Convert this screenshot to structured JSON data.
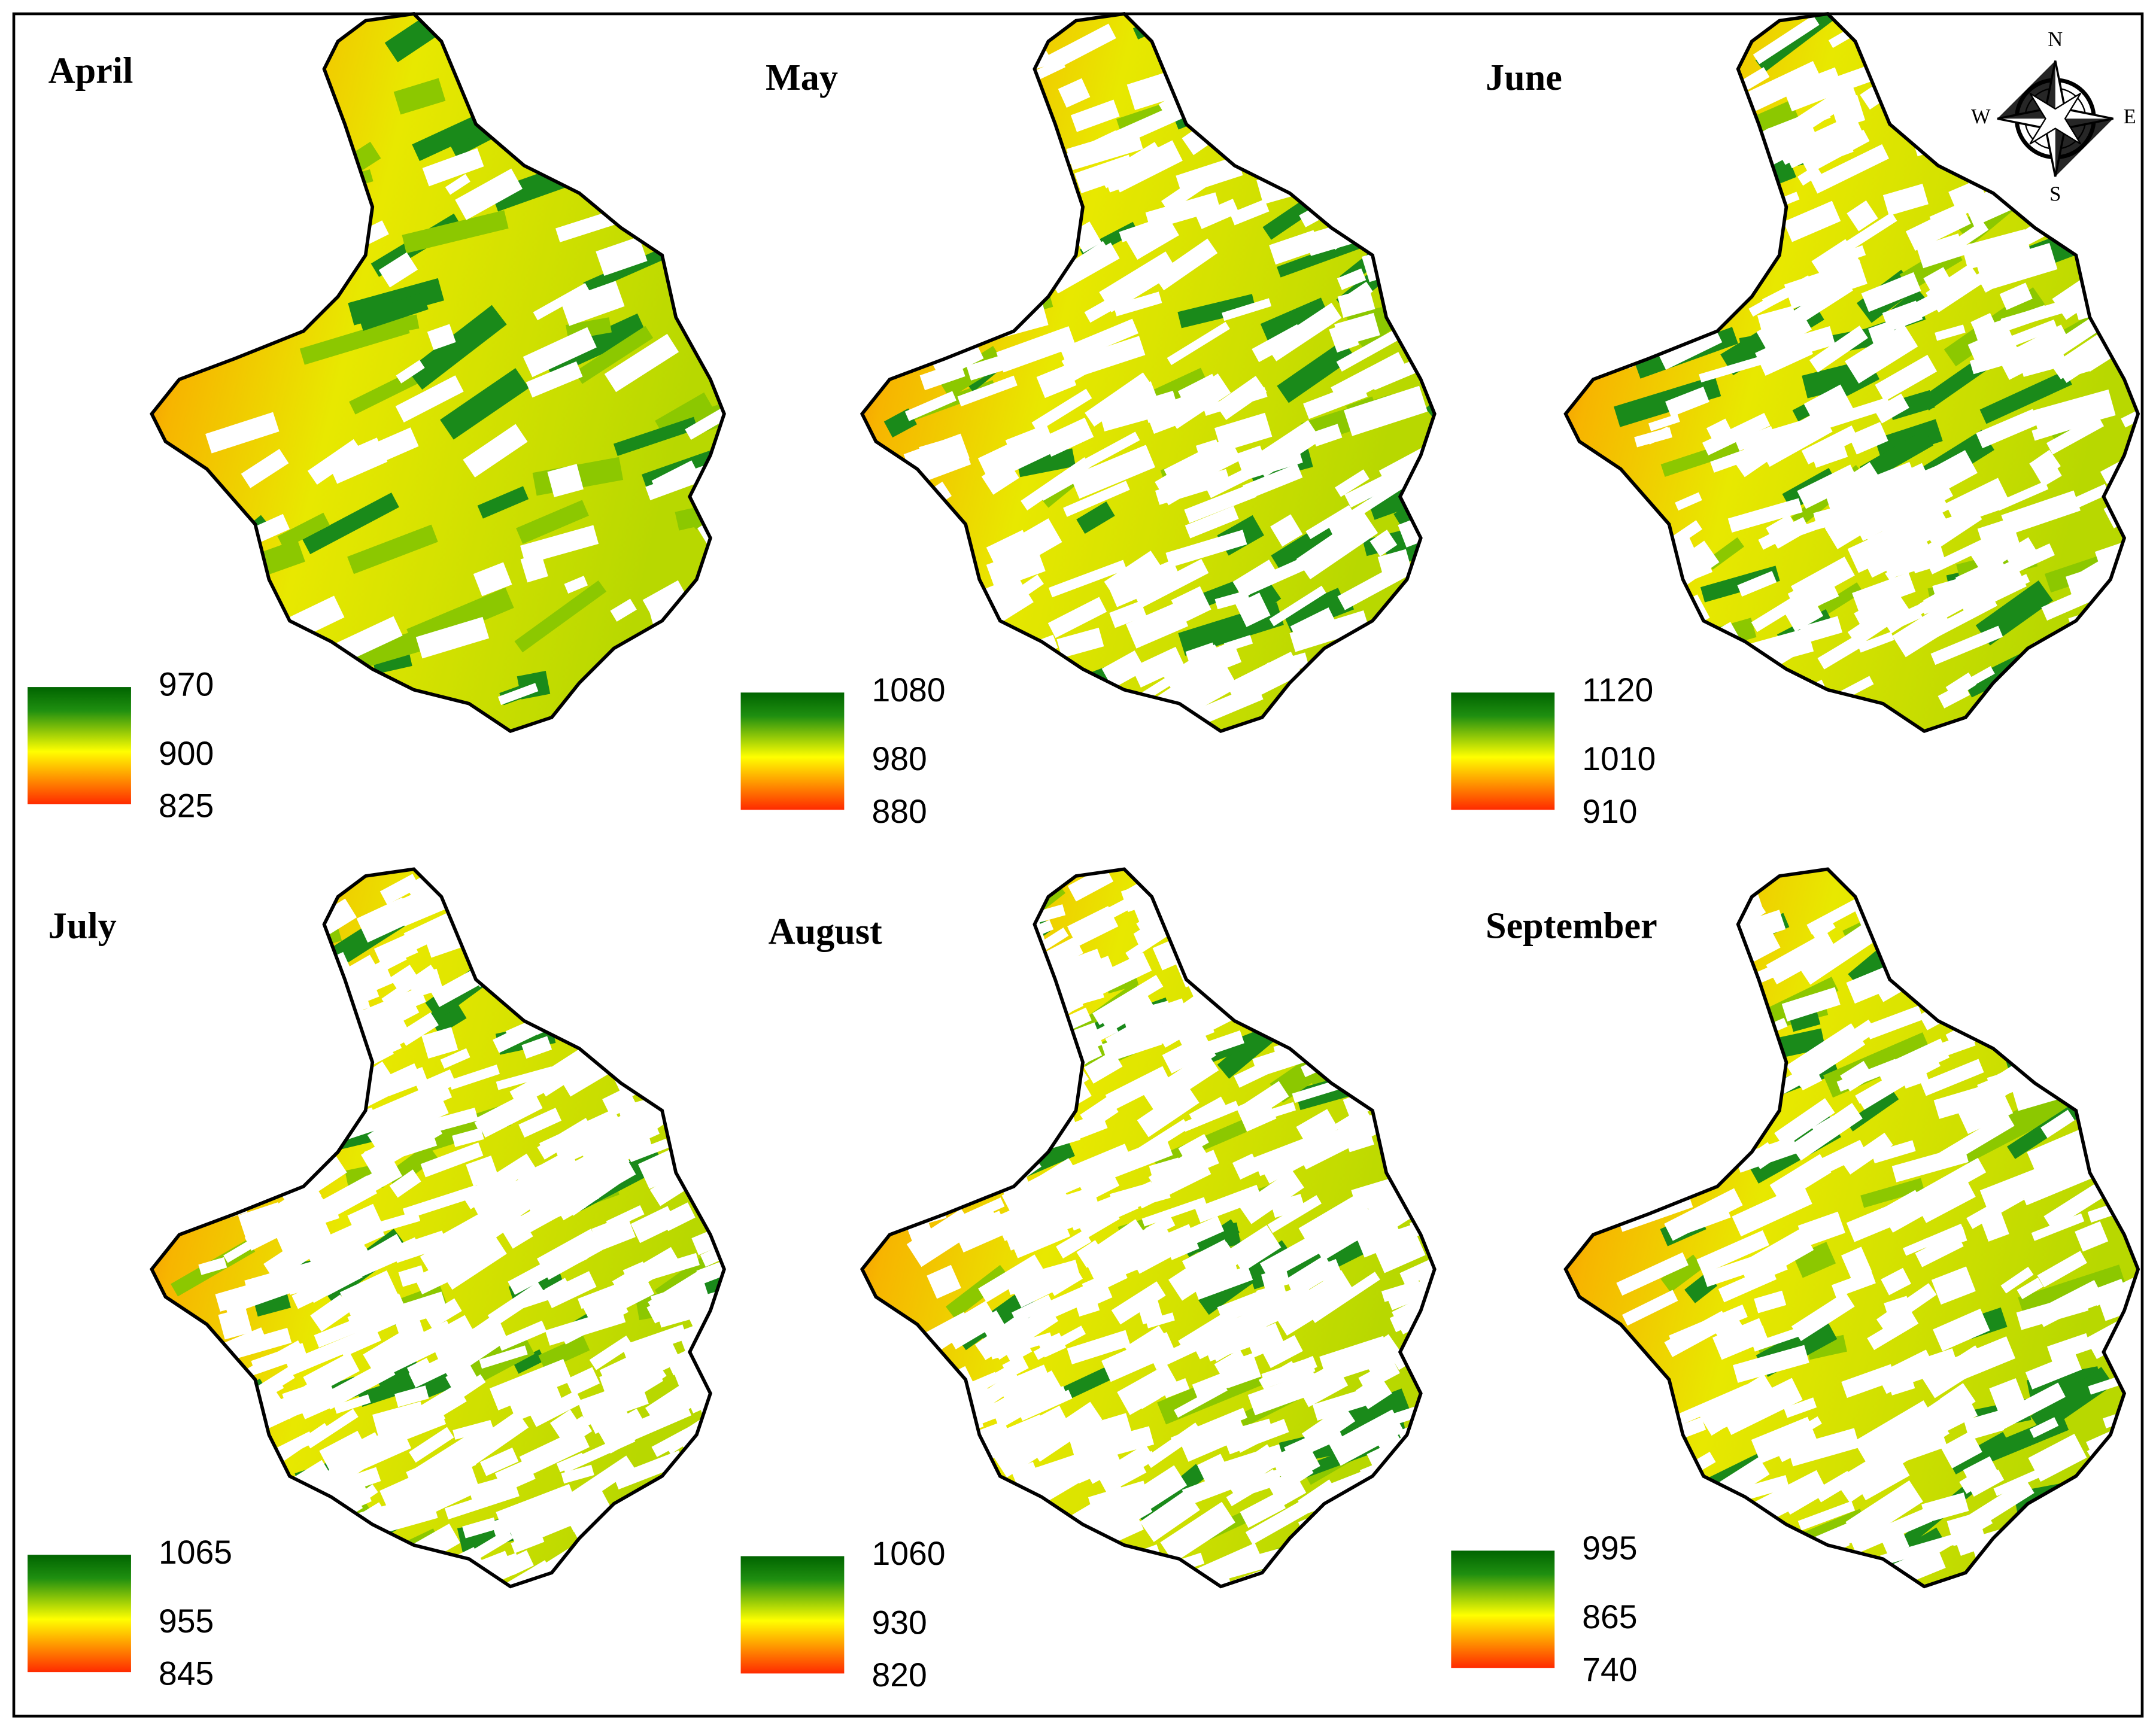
{
  "panels": [
    {
      "title": "April",
      "legend": {
        "ticks": [
          970,
          900,
          825
        ]
      }
    },
    {
      "title": "May",
      "legend": {
        "ticks": [
          1080,
          980,
          880
        ]
      }
    },
    {
      "title": "June",
      "legend": {
        "ticks": [
          1120,
          1010,
          910
        ]
      }
    },
    {
      "title": "July",
      "legend": {
        "ticks": [
          1065,
          955,
          845
        ]
      }
    },
    {
      "title": "August",
      "legend": {
        "ticks": [
          1060,
          930,
          820
        ]
      }
    },
    {
      "title": "September",
      "legend": {
        "ticks": [
          995,
          865,
          740
        ]
      }
    }
  ],
  "compass": {
    "north": "N",
    "east": "E",
    "south": "S",
    "west": "W"
  }
}
